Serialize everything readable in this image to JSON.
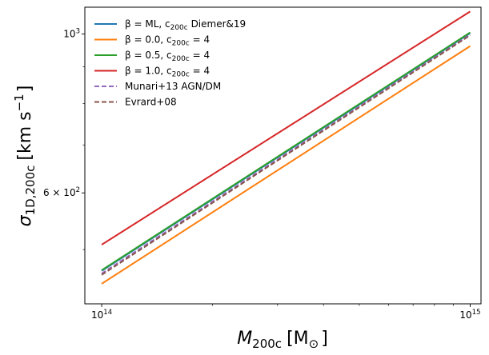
{
  "chart_data": {
    "type": "line",
    "x_scale": "log",
    "y_scale": "log",
    "xlim": [
      90000000000000.0,
      1070000000000000.0
    ],
    "ylim": [
      420,
      1090
    ],
    "grid": false,
    "legend_placement": "upper-left",
    "xlabel": {
      "main": "M",
      "sub": "200c",
      "unit": "[M",
      "unit_sub": "⊙",
      "unit_close": "]"
    },
    "ylabel": {
      "main": "σ",
      "sub": "1D,200c",
      "unit": "[km s",
      "unit_sup": "−1",
      "unit_close": "]"
    },
    "x_ticks": [
      {
        "value": 100000000000000.0,
        "base": "10",
        "exp": "14"
      },
      {
        "value": 1000000000000000.0,
        "base": "10",
        "exp": "15"
      }
    ],
    "y_ticks": [
      {
        "value": 600,
        "base": "6 × 10",
        "exp": "2"
      },
      {
        "value": 1000,
        "base": "10",
        "exp": "3"
      }
    ],
    "series": [
      {
        "name": "β = ML, c₂₀₀c Diemer&19",
        "legend": {
          "pre": "β = ML, c",
          "sub": "200c",
          "post": " Diemer&19"
        },
        "color": "#1f77b4",
        "dash": "solid",
        "x": [
          100000000000000.0,
          1000000000000000.0
        ],
        "y": [
          467,
          1003
        ]
      },
      {
        "name": "β = 0.0, c₂₀₀c = 4",
        "legend": {
          "pre": "β = 0.0, c",
          "sub": "200c",
          "post": " = 4"
        },
        "color": "#ff7f0e",
        "dash": "solid",
        "x": [
          100000000000000.0,
          1000000000000000.0
        ],
        "y": [
          448,
          962
        ]
      },
      {
        "name": "β = 0.5, c₂₀₀c = 4",
        "legend": {
          "pre": "β = 0.5, c",
          "sub": "200c",
          "post": " = 4"
        },
        "color": "#2ca02c",
        "dash": "solid",
        "x": [
          100000000000000.0,
          1000000000000000.0
        ],
        "y": [
          468,
          1005
        ]
      },
      {
        "name": "β = 1.0, c₂₀₀c = 4",
        "legend": {
          "pre": "β = 1.0, c",
          "sub": "200c",
          "post": " = 4"
        },
        "color": "#d62728",
        "dash": "solid",
        "x": [
          100000000000000.0,
          1000000000000000.0
        ],
        "y": [
          508,
          1075
        ]
      },
      {
        "name": "Munari+13 AGN/DM",
        "legend": {
          "pre": "Munari+13 AGN/DM",
          "sub": "",
          "post": ""
        },
        "color": "#9467bd",
        "dash": "dashed",
        "x": [
          100000000000000.0,
          1000000000000000.0
        ],
        "y": [
          463,
          998
        ]
      },
      {
        "name": "Evrard+08",
        "legend": {
          "pre": "Evrard+08",
          "sub": "",
          "post": ""
        },
        "color": "#8c564b",
        "dash": "dashed",
        "x": [
          100000000000000.0,
          1000000000000000.0
        ],
        "y": [
          461,
          996
        ]
      }
    ]
  }
}
